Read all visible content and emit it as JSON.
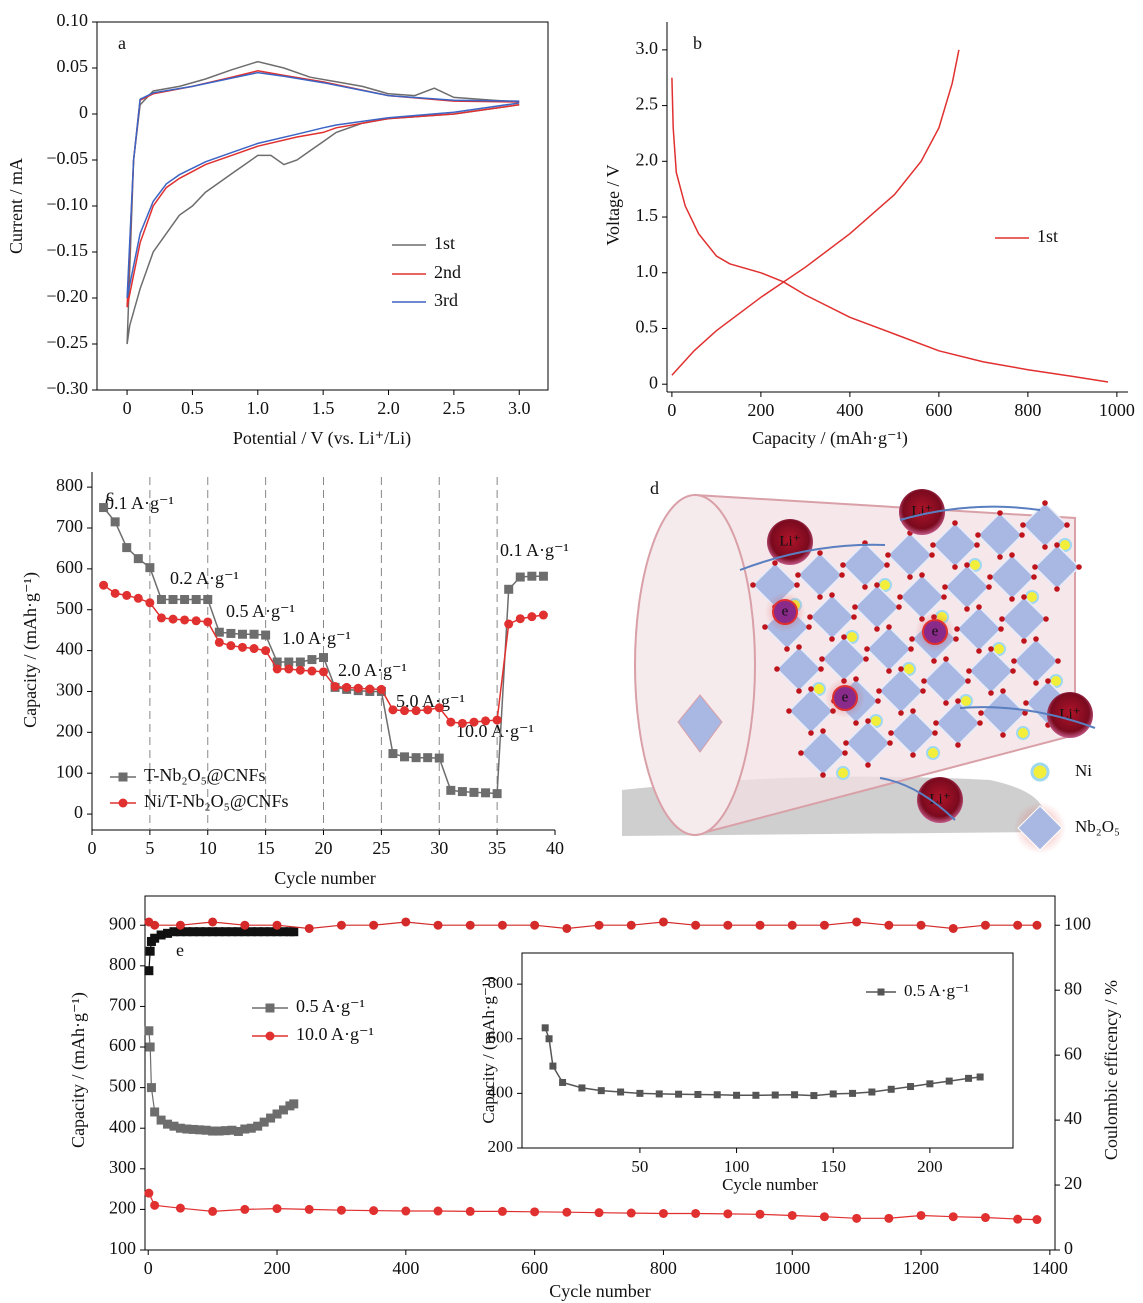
{
  "chart_data": [
    {
      "type": "line",
      "panel_label": "a",
      "xlabel": "Potential / V (vs. Li⁺/Li)",
      "ylabel": "Current / mA",
      "xlim": [
        -0.23,
        3.22
      ],
      "ylim": [
        -0.3,
        0.1
      ],
      "xticks": [
        0,
        0.5,
        {
          "value": 1,
          "label": "1.0"
        },
        1.5,
        {
          "value": 2,
          "label": "2.0"
        },
        2.5,
        {
          "value": 3,
          "label": "3.0"
        }
      ],
      "yticks": [
        {
          "value": 0.1,
          "label": "0.10"
        },
        {
          "value": 0.05,
          "label": "0.05"
        },
        0,
        {
          "value": -0.05,
          "label": "−0.05"
        },
        {
          "value": -0.1,
          "label": "−0.10"
        },
        {
          "value": -0.15,
          "label": "−0.15"
        },
        {
          "value": -0.2,
          "label": "−0.20"
        },
        {
          "value": -0.25,
          "label": "−0.25"
        },
        {
          "value": -0.3,
          "label": "−0.30"
        }
      ],
      "series": [
        {
          "name": "1st",
          "color": "#6d6d6d",
          "x": [
            3.0,
            2.5,
            2.0,
            1.8,
            1.6,
            1.5,
            1.4,
            1.3,
            1.2,
            1.1,
            1.0,
            0.9,
            0.8,
            0.7,
            0.6,
            0.5,
            0.4,
            0.3,
            0.2,
            0.1,
            0.02,
            0,
            0.05,
            0.1,
            0.2,
            0.4,
            0.6,
            0.8,
            1.0,
            1.2,
            1.4,
            1.6,
            1.8,
            2.0,
            2.2,
            2.35,
            2.5,
            2.8,
            3.0
          ],
          "values": [
            0.01,
            0,
            -0.005,
            -0.01,
            -0.02,
            -0.03,
            -0.04,
            -0.05,
            -0.055,
            -0.045,
            -0.045,
            -0.055,
            -0.065,
            -0.075,
            -0.085,
            -0.1,
            -0.11,
            -0.13,
            -0.15,
            -0.19,
            -0.23,
            -0.25,
            -0.05,
            0.01,
            0.025,
            0.03,
            0.038,
            0.048,
            0.057,
            0.05,
            0.04,
            0.035,
            0.03,
            0.022,
            0.02,
            0.028,
            0.018,
            0.015,
            0.013
          ]
        },
        {
          "name": "2nd",
          "color": "#e0302f",
          "x": [
            3.0,
            2.5,
            2.0,
            1.6,
            1.5,
            1.3,
            1.0,
            0.8,
            0.6,
            0.4,
            0.3,
            0.2,
            0.1,
            0,
            0.05,
            0.1,
            0.2,
            0.5,
            0.8,
            1.0,
            1.2,
            1.5,
            2.0,
            2.5,
            3.0
          ],
          "values": [
            0.01,
            0,
            -0.005,
            -0.015,
            -0.02,
            -0.025,
            -0.035,
            -0.045,
            -0.055,
            -0.07,
            -0.08,
            -0.1,
            -0.14,
            -0.21,
            -0.05,
            0.015,
            0.022,
            0.03,
            0.04,
            0.047,
            0.042,
            0.035,
            0.02,
            0.014,
            0.013
          ]
        },
        {
          "name": "3rd",
          "color": "#3b64c4",
          "x": [
            3.0,
            2.5,
            2.0,
            1.6,
            1.5,
            1.3,
            1.0,
            0.8,
            0.6,
            0.4,
            0.3,
            0.2,
            0.1,
            0,
            0.05,
            0.1,
            0.2,
            0.5,
            0.8,
            1.0,
            1.2,
            1.5,
            2.0,
            2.5,
            3.0
          ],
          "values": [
            0.012,
            0.002,
            -0.004,
            -0.012,
            -0.015,
            -0.022,
            -0.032,
            -0.042,
            -0.052,
            -0.066,
            -0.076,
            -0.095,
            -0.13,
            -0.2,
            -0.05,
            0.016,
            0.023,
            0.03,
            0.039,
            0.045,
            0.041,
            0.034,
            0.02,
            0.015,
            0.014
          ]
        }
      ]
    },
    {
      "type": "line",
      "panel_label": "b",
      "xlabel": "Capacity / (mAh·g⁻¹)",
      "ylabel": "Voltage / V",
      "xlim": [
        -11,
        1025
      ],
      "ylim": [
        -0.07,
        3.25
      ],
      "xticks": [
        0,
        200,
        400,
        600,
        800,
        1000
      ],
      "yticks": [
        0,
        0.5,
        {
          "value": 1,
          "label": "1.0"
        },
        1.5,
        {
          "value": 2,
          "label": "2.0"
        },
        2.5,
        {
          "value": 3,
          "label": "3.0"
        }
      ],
      "series": [
        {
          "name": "1st",
          "color": "#e0302f",
          "x": [
            0,
            3,
            10,
            30,
            60,
            100,
            130,
            200,
            250,
            300,
            400,
            500,
            600,
            700,
            800,
            900,
            980,
            null,
            0,
            50,
            100,
            200,
            300,
            400,
            500,
            560,
            600,
            630,
            645
          ],
          "values": [
            2.75,
            2.3,
            1.9,
            1.6,
            1.35,
            1.15,
            1.08,
            1.0,
            0.92,
            0.8,
            0.6,
            0.45,
            0.3,
            0.2,
            0.13,
            0.07,
            0.02,
            null,
            0.08,
            0.3,
            0.48,
            0.78,
            1.05,
            1.35,
            1.7,
            2.0,
            2.3,
            2.7,
            3.0
          ]
        }
      ]
    },
    {
      "type": "line",
      "panel_label": "c",
      "xlabel": "Cycle number",
      "ylabel": "Capacity / (mAh·g⁻¹)",
      "xlim": [
        0,
        40
      ],
      "ylim": [
        -39,
        837
      ],
      "xticks": [
        0,
        5,
        10,
        15,
        20,
        25,
        30,
        35,
        40
      ],
      "yticks": [
        0,
        100,
        200,
        300,
        400,
        500,
        600,
        700,
        800
      ],
      "vlines": [
        5,
        10,
        15,
        20,
        25,
        30,
        35
      ],
      "annotations": [
        "0.1 A·g⁻¹",
        "0.2 A·g⁻¹",
        "0.5 A·g⁻¹",
        "1.0 A·g⁻¹",
        "2.0 A·g⁻¹",
        "5.0 A·g⁻¹",
        "10.0 A·g⁻¹",
        "0.1 A·g⁻¹"
      ],
      "x": [
        1,
        2,
        3,
        4,
        5,
        6,
        7,
        8,
        9,
        10,
        11,
        12,
        13,
        14,
        15,
        16,
        17,
        18,
        19,
        20,
        21,
        22,
        23,
        24,
        25,
        26,
        27,
        28,
        29,
        30,
        31,
        32,
        33,
        34,
        35,
        36,
        37,
        38,
        39
      ],
      "series": [
        {
          "name": "T-Nb₂O₅@CNFs",
          "color": "#6d6d6d",
          "marker": "square",
          "values": [
            750,
            715,
            652,
            625,
            603,
            525,
            525,
            525,
            525,
            525,
            445,
            442,
            440,
            440,
            438,
            372,
            372,
            372,
            378,
            383,
            310,
            305,
            302,
            300,
            300,
            148,
            140,
            138,
            138,
            137,
            58,
            55,
            53,
            52,
            50,
            550,
            580,
            582,
            582
          ]
        },
        {
          "name": "Ni/T-Nb₂O₅@CNFs",
          "color": "#e0302f",
          "marker": "circle",
          "values": [
            560,
            540,
            535,
            528,
            517,
            480,
            477,
            475,
            473,
            470,
            420,
            412,
            408,
            405,
            400,
            355,
            355,
            352,
            350,
            348,
            312,
            310,
            308,
            306,
            305,
            255,
            253,
            253,
            255,
            260,
            225,
            222,
            225,
            228,
            230,
            465,
            478,
            483,
            487
          ]
        }
      ]
    },
    {
      "type": "line",
      "panel_label": "e",
      "xlabel": "Cycle number",
      "ylabel": "Capacity / (mAh·g⁻¹)",
      "y2label": "Coulombic efficency / %",
      "xlim": [
        -5,
        1408
      ],
      "ylim": [
        100,
        972
      ],
      "y2lim": [
        0,
        109
      ],
      "xticks": [
        0,
        200,
        400,
        600,
        800,
        1000,
        1200,
        1400
      ],
      "yticks": [
        100,
        200,
        300,
        400,
        500,
        600,
        700,
        800,
        900
      ],
      "y2ticks": [
        0,
        20,
        40,
        60,
        80,
        100
      ],
      "series": [
        {
          "name": "0.5 A·g⁻¹",
          "color": "#6d6d6d",
          "marker": "square",
          "x": [
            1,
            3,
            5,
            10,
            20,
            30,
            40,
            50,
            60,
            70,
            80,
            90,
            100,
            110,
            120,
            130,
            140,
            150,
            160,
            170,
            180,
            190,
            200,
            210,
            220,
            226
          ],
          "values": [
            640,
            600,
            500,
            440,
            420,
            410,
            405,
            400,
            398,
            397,
            396,
            395,
            393,
            393,
            394,
            395,
            392,
            398,
            400,
            405,
            415,
            425,
            435,
            445,
            455,
            460
          ]
        },
        {
          "name": "10.0 A·g⁻¹",
          "color": "#e0302f",
          "marker": "circle",
          "x": [
            1,
            10,
            50,
            100,
            150,
            200,
            250,
            300,
            350,
            400,
            450,
            500,
            550,
            600,
            650,
            700,
            750,
            800,
            850,
            900,
            950,
            1000,
            1050,
            1100,
            1150,
            1200,
            1250,
            1300,
            1350,
            1380
          ],
          "values": [
            240,
            210,
            203,
            195,
            200,
            202,
            200,
            198,
            197,
            196,
            196,
            195,
            195,
            194,
            193,
            192,
            191,
            190,
            190,
            189,
            188,
            185,
            182,
            178,
            178,
            185,
            182,
            180,
            176,
            175
          ]
        },
        {
          "axis": "y2",
          "color": "#111111",
          "marker": "square",
          "x": [
            1,
            3,
            5,
            10,
            20,
            30,
            40,
            50,
            60,
            70,
            80,
            90,
            100,
            110,
            120,
            130,
            140,
            150,
            160,
            170,
            180,
            190,
            200,
            210,
            220,
            226
          ],
          "values": [
            86,
            92,
            95,
            96,
            97,
            97.5,
            98,
            98,
            98,
            98,
            98,
            98,
            98,
            98,
            98,
            98,
            98,
            98,
            98,
            98,
            98,
            98,
            98,
            98,
            98,
            98
          ]
        },
        {
          "axis": "y2",
          "color": "#d42a2a",
          "marker": "circle",
          "x": [
            1,
            10,
            50,
            100,
            150,
            200,
            250,
            300,
            350,
            400,
            450,
            500,
            550,
            600,
            650,
            700,
            750,
            800,
            850,
            900,
            950,
            1000,
            1050,
            1100,
            1150,
            1200,
            1250,
            1300,
            1350,
            1380
          ],
          "values": [
            101,
            100,
            100,
            101,
            100,
            100,
            99,
            100,
            100,
            101,
            100,
            100,
            100,
            100,
            99,
            100,
            100,
            101,
            100,
            100,
            100,
            100,
            100,
            101,
            100,
            100,
            99,
            100,
            100,
            100
          ]
        }
      ]
    },
    {
      "type": "line",
      "xlabel": "Cycle number",
      "ylabel": "Capacity / (mAh·g⁻¹)",
      "xlim": [
        -11,
        243
      ],
      "ylim": [
        200,
        914
      ],
      "xticks": [
        50,
        100,
        150,
        200
      ],
      "yticks": [
        200,
        400,
        600,
        800
      ],
      "series": [
        {
          "name": "0.5 A·g⁻¹",
          "color": "#555555",
          "marker": "square",
          "x": [
            1,
            3,
            5,
            10,
            20,
            30,
            40,
            50,
            60,
            70,
            80,
            90,
            100,
            110,
            120,
            130,
            140,
            150,
            160,
            170,
            180,
            190,
            200,
            210,
            220,
            226
          ],
          "values": [
            640,
            600,
            500,
            440,
            420,
            410,
            405,
            400,
            398,
            397,
            396,
            395,
            393,
            393,
            394,
            395,
            392,
            398,
            400,
            405,
            415,
            425,
            435,
            445,
            455,
            460
          ]
        }
      ]
    }
  ],
  "diagram": {
    "label": "d",
    "ions": [
      "Li⁺",
      "Li⁺",
      "Li⁺",
      "Li⁺"
    ],
    "electrons": [
      "e",
      "e",
      "e"
    ],
    "legend": [
      "Ni",
      "Nb₂O₅"
    ]
  }
}
